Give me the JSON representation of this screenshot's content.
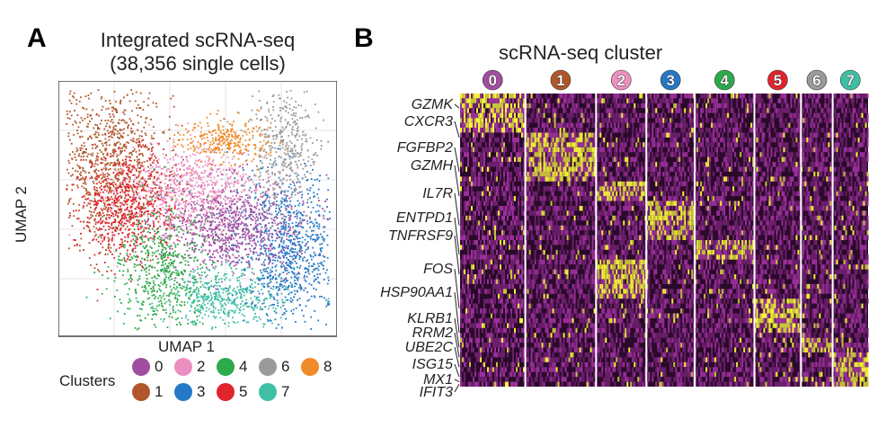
{
  "panel_a": {
    "letter": "A",
    "title_line1": "Integrated scRNA-seq",
    "title_line2": "(38,356 single cells)",
    "xlabel": "UMAP 1",
    "ylabel": "UMAP 2",
    "legend_title": "Clusters"
  },
  "panel_b": {
    "letter": "B",
    "title": "scRNA-seq cluster"
  },
  "chart_data": [
    {
      "type": "scatter",
      "title": "Integrated scRNA-seq (38,356 single cells)",
      "xlabel": "UMAP 1",
      "ylabel": "UMAP 2",
      "grid": true,
      "legend": {
        "title": "Clusters",
        "placement": "bottom",
        "entries": [
          {
            "label": "0",
            "color": "#a04ea0"
          },
          {
            "label": "1",
            "color": "#b0562a"
          },
          {
            "label": "2",
            "color": "#ec8fc0"
          },
          {
            "label": "3",
            "color": "#2478c6"
          },
          {
            "label": "4",
            "color": "#2daa4a"
          },
          {
            "label": "5",
            "color": "#e0242c"
          },
          {
            "label": "6",
            "color": "#9a9a9a"
          },
          {
            "label": "7",
            "color": "#3fbfa4"
          },
          {
            "label": "8",
            "color": "#f08a2a"
          }
        ]
      }
    },
    {
      "type": "heatmap",
      "title": "scRNA-seq cluster",
      "clusters": [
        {
          "label": "0",
          "color": "#a04ea0",
          "share": 0.175
        },
        {
          "label": "1",
          "color": "#b0562a",
          "share": 0.19
        },
        {
          "label": "2",
          "color": "#ec8fc0",
          "share": 0.135
        },
        {
          "label": "3",
          "color": "#2478c6",
          "share": 0.13
        },
        {
          "label": "4",
          "color": "#2daa4a",
          "share": 0.16
        },
        {
          "label": "5",
          "color": "#e0242c",
          "share": 0.125
        },
        {
          "label": "6",
          "color": "#9a9a9a",
          "share": 0.085
        },
        {
          "label": "7",
          "color": "#3fbfa4",
          "share": 0.095
        }
      ],
      "genes": [
        "GZMK",
        "CXCR3",
        "FGFBP2",
        "GZMH",
        "IL7R",
        "ENTPD1",
        "TNFRSF9",
        "FOS",
        "HSP90AA1",
        "KLRB1",
        "RRM2",
        "UBE2C",
        "ISG15",
        "MX1",
        "IFIT3"
      ],
      "colors": {
        "low": "#3a0d3a",
        "mid": "#9a2f9a",
        "high": "#f6f23a"
      }
    }
  ]
}
